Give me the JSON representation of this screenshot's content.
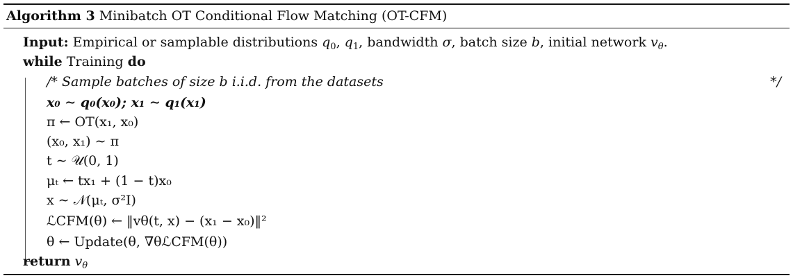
{
  "caption": {
    "label": "Algorithm 3",
    "title": "Minibatch OT Conditional Flow Matching (OT-CFM)"
  },
  "input": {
    "keyword": "Input:",
    "text_a": "Empirical or samplable distributions ",
    "q0": "q",
    "q0_sub": "0",
    "comma1": ", ",
    "q1": "q",
    "q1_sub": "1",
    "text_b": ", bandwidth ",
    "sigma": "σ",
    "text_c": ", batch size ",
    "b": "b",
    "text_d": ", initial network ",
    "v": "v",
    "v_sub": "θ",
    "end": "."
  },
  "while": {
    "keyword": "while",
    "condition": " Training ",
    "do": "do"
  },
  "comment": {
    "open": "/* Sample batches of size b i.i.d. from the datasets",
    "close": "*/"
  },
  "steps": [
    "x₀ ∼ q₀(x₀);    x₁ ∼ q₁(x₁)",
    "π ← OT(x₁, x₀)",
    "(x₀, x₁) ∼ π",
    "t ∼ 𝒰(0, 1)",
    "μₜ ← tx₁ + (1 − t)x₀",
    "x ∼ 𝒩(μₜ, σ²I)",
    "ℒCFM(θ) ← ‖vθ(t, x) − (x₁ − x₀)‖²",
    "θ ← Update(θ, ∇θℒCFM(θ))"
  ],
  "return": {
    "keyword": "return",
    "value": "v",
    "value_sub": "θ"
  }
}
